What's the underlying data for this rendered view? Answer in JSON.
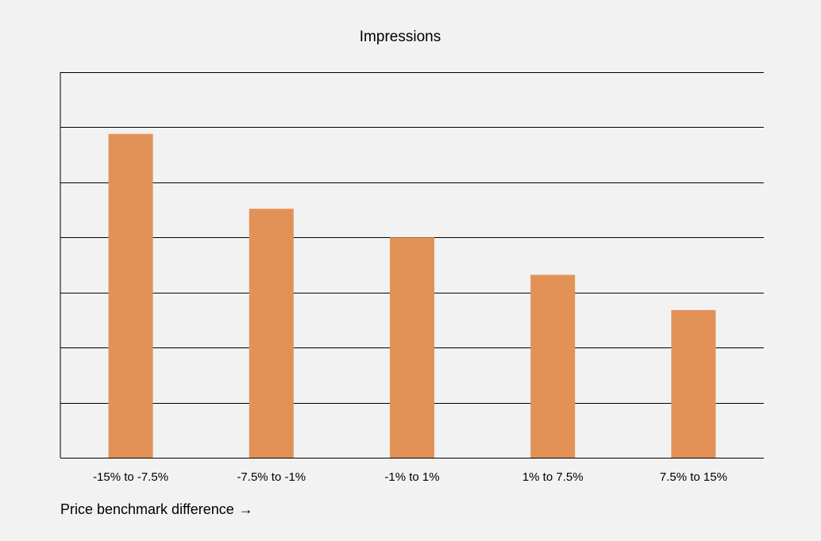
{
  "chart_data": {
    "type": "bar",
    "title": "Impressions",
    "categories": [
      "-15% to -7.5%",
      "-7.5% to -1%",
      "-1% to 1%",
      "1% to 7.5%",
      "7.5% to 15%"
    ],
    "values": [
      5.88,
      4.52,
      4.0,
      3.32,
      2.68
    ],
    "xlabel": "Price benchmark difference",
    "xlabel_arrow": "→",
    "ylabel": "",
    "ylim": [
      0,
      7
    ],
    "grid": true,
    "y_tick_labels_visible": false,
    "colors": {
      "bar": "#e39257",
      "grid": "#000000",
      "background": "#f2f2f2"
    }
  }
}
